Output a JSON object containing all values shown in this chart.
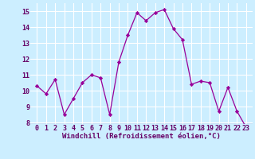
{
  "x": [
    0,
    1,
    2,
    3,
    4,
    5,
    6,
    7,
    8,
    9,
    10,
    11,
    12,
    13,
    14,
    15,
    16,
    17,
    18,
    19,
    20,
    21,
    22,
    23
  ],
  "y": [
    10.3,
    9.8,
    10.7,
    8.5,
    9.5,
    10.5,
    11.0,
    10.8,
    8.5,
    11.8,
    13.5,
    14.9,
    14.4,
    14.9,
    15.1,
    13.9,
    13.2,
    10.4,
    10.6,
    10.5,
    8.7,
    10.2,
    8.7,
    7.7
  ],
  "line_color": "#990099",
  "marker": "D",
  "marker_size": 2.2,
  "bg_color": "#cceeff",
  "grid_color": "#ffffff",
  "xlabel": "Windchill (Refroidissement éolien,°C)",
  "xlabel_fontsize": 6.5,
  "tick_fontsize": 6.0,
  "ylim": [
    7.9,
    15.5
  ],
  "yticks": [
    8,
    9,
    10,
    11,
    12,
    13,
    14,
    15
  ],
  "xticks": [
    0,
    1,
    2,
    3,
    4,
    5,
    6,
    7,
    8,
    9,
    10,
    11,
    12,
    13,
    14,
    15,
    16,
    17,
    18,
    19,
    20,
    21,
    22,
    23
  ]
}
